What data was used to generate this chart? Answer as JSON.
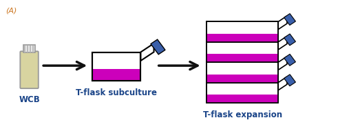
{
  "bg_color": "#ffffff",
  "label_A": "(A)",
  "label_wcb": "WCB",
  "label_tflask": "T-flask subculture",
  "label_expansion": "T-flask expansion",
  "magenta": "#cc00bb",
  "blue_cap": "#3a5faa",
  "vial_color": "#d8d4a0",
  "vial_border": "#999999",
  "arrow_color": "#111111",
  "text_color": "#1a4488",
  "label_A_color": "#cc7722",
  "figsize": [
    5.23,
    2.0
  ],
  "dpi": 100
}
